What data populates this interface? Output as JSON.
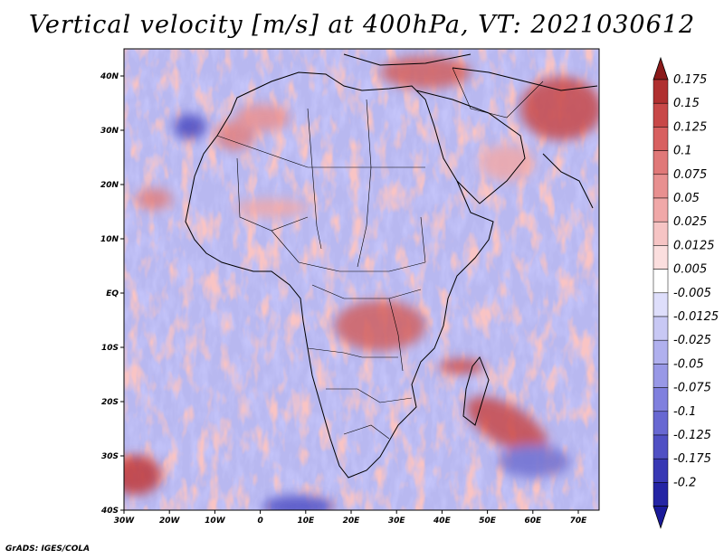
{
  "title": "Vertical velocity [m/s] at 400hPa, VT: 2021030612",
  "credit": "GrADS: IGES/COLA",
  "map": {
    "region": "Africa",
    "lat_labels": [
      "40N",
      "30N",
      "20N",
      "10N",
      "EQ",
      "10S",
      "20S",
      "30S",
      "40S"
    ],
    "lon_labels": [
      "30W",
      "20W",
      "10W",
      "0",
      "10E",
      "20E",
      "30E",
      "40E",
      "50E",
      "60E",
      "70E"
    ]
  },
  "colorbar": {
    "top_color": "#8b1a1a",
    "bottom_color": "#1a1a9a",
    "levels": [
      {
        "label": "0.175",
        "color": "#b03030"
      },
      {
        "label": "0.15",
        "color": "#c84848"
      },
      {
        "label": "0.125",
        "color": "#d86060"
      },
      {
        "label": "0.1",
        "color": "#e07878"
      },
      {
        "label": "0.075",
        "color": "#e89090"
      },
      {
        "label": "0.05",
        "color": "#f0a8a8"
      },
      {
        "label": "0.025",
        "color": "#f6c4c4"
      },
      {
        "label": "0.0125",
        "color": "#fbdede"
      },
      {
        "label": "0.005",
        "color": "#ffffff"
      },
      {
        "label": "-0.005",
        "color": "#dedefb"
      },
      {
        "label": "-0.0125",
        "color": "#c8c8f4"
      },
      {
        "label": "-0.025",
        "color": "#b0b0ee"
      },
      {
        "label": "-0.05",
        "color": "#9898e6"
      },
      {
        "label": "-0.075",
        "color": "#8080de"
      },
      {
        "label": "-0.1",
        "color": "#6868d2"
      },
      {
        "label": "-0.125",
        "color": "#5050c4"
      },
      {
        "label": "-0.175",
        "color": "#3838b4"
      },
      {
        "label": "-0.2",
        "color": "#2424a4"
      }
    ]
  }
}
